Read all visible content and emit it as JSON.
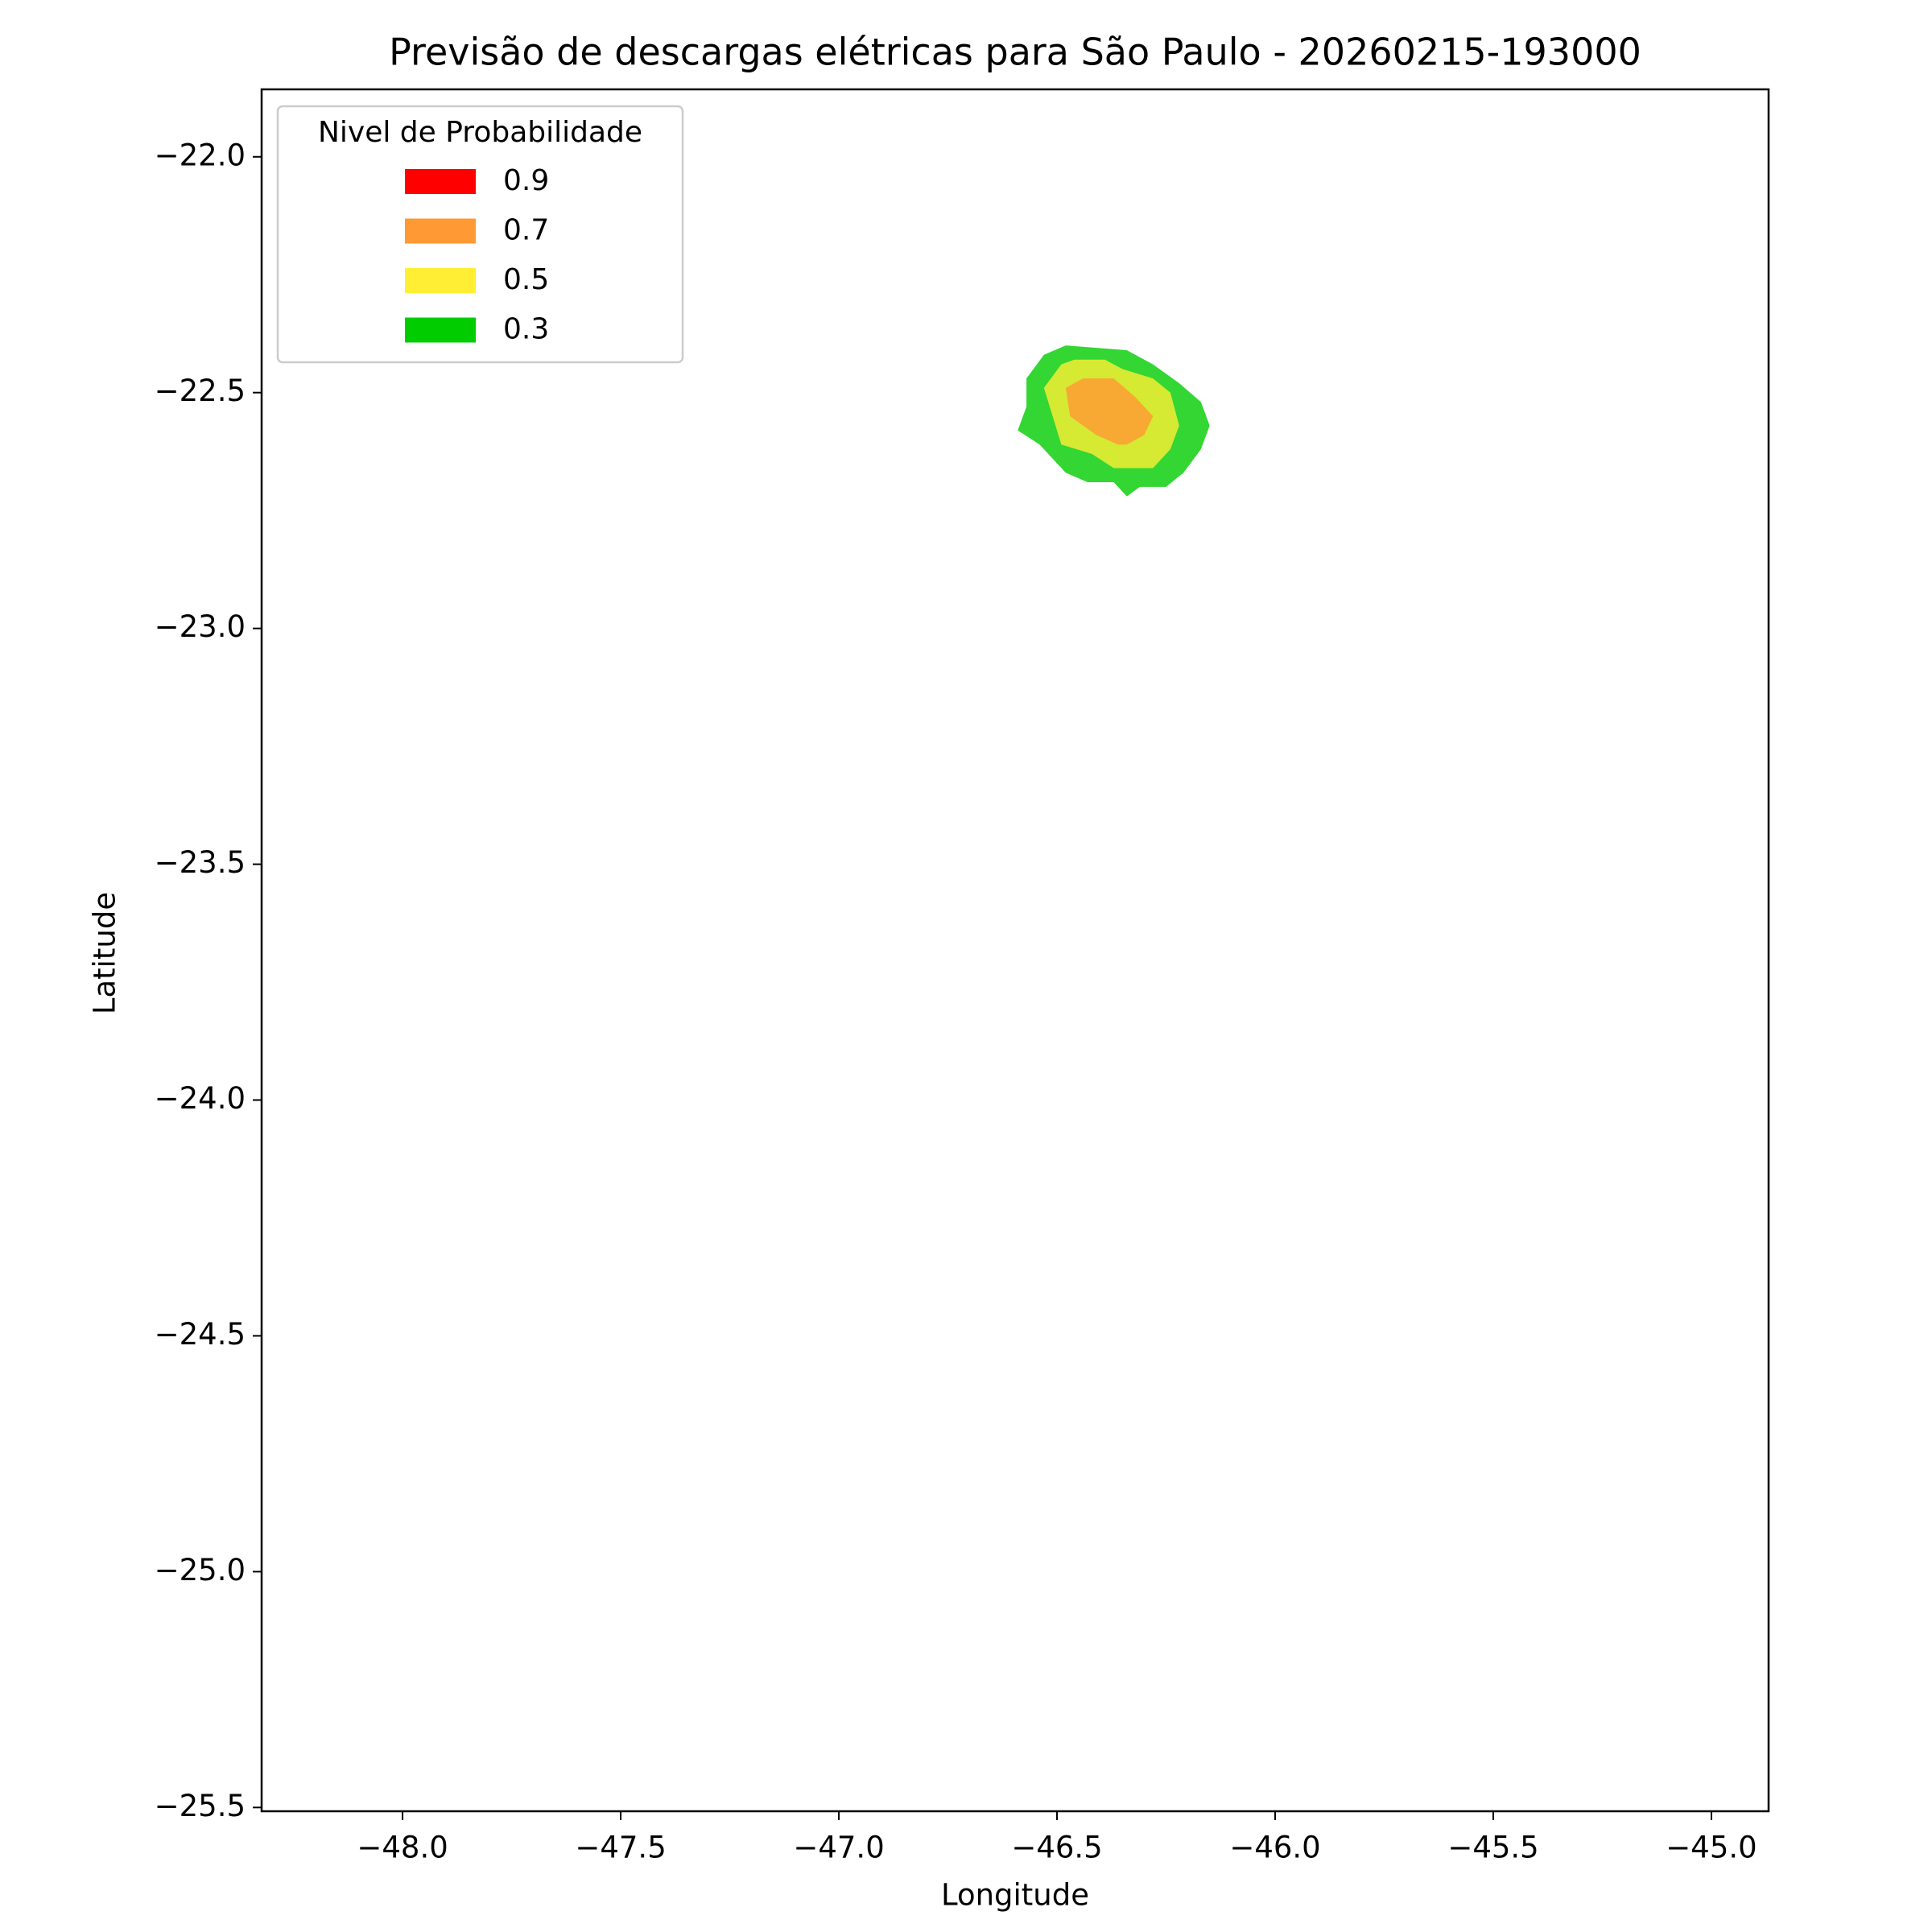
{
  "chart_data": {
    "type": "contour",
    "title": "Previsão de descargas elétricas para São Paulo - 20260215-193000",
    "x_label": "Longitude",
    "y_label": "Latitude",
    "legend_title": "Nivel de Probabilidade",
    "legend_position": "upper left",
    "xlim": [
      -48.323,
      -44.869
    ],
    "ylim": [
      -25.508,
      -21.857
    ],
    "xticks": [
      {
        "value": -48.0,
        "label": "−48.0"
      },
      {
        "value": -47.5,
        "label": "−47.5"
      },
      {
        "value": -47.0,
        "label": "−47.0"
      },
      {
        "value": -46.5,
        "label": "−46.5"
      },
      {
        "value": -46.0,
        "label": "−46.0"
      },
      {
        "value": -45.5,
        "label": "−45.5"
      },
      {
        "value": -45.0,
        "label": "−45.0"
      }
    ],
    "yticks": [
      {
        "value": -22.0,
        "label": "−22.0"
      },
      {
        "value": -22.5,
        "label": "−22.5"
      },
      {
        "value": -23.0,
        "label": "−23.0"
      },
      {
        "value": -23.5,
        "label": "−23.5"
      },
      {
        "value": -24.0,
        "label": "−24.0"
      },
      {
        "value": -24.5,
        "label": "−24.5"
      },
      {
        "value": -25.0,
        "label": "−25.0"
      },
      {
        "value": -25.5,
        "label": "−25.5"
      }
    ],
    "series": [
      {
        "name": "0.9",
        "color": "#ff0000",
        "lon": [],
        "lat": []
      },
      {
        "name": "0.7",
        "color": "#ff9933",
        "lon": [
          -46.48,
          -46.44,
          -46.37,
          -46.32,
          -46.28,
          -46.3,
          -46.34,
          -46.36,
          -46.41,
          -46.47
        ],
        "lat": [
          -22.49,
          -22.47,
          -22.47,
          -22.51,
          -22.55,
          -22.59,
          -22.61,
          -22.61,
          -22.59,
          -22.55
        ]
      },
      {
        "name": "0.5",
        "color": "#ffee33",
        "lon": [
          -46.53,
          -46.49,
          -46.46,
          -46.39,
          -46.35,
          -46.28,
          -46.24,
          -46.22,
          -46.24,
          -46.28,
          -46.37,
          -46.42,
          -46.49,
          -46.51
        ],
        "lat": [
          -22.49,
          -22.44,
          -22.43,
          -22.43,
          -22.45,
          -22.47,
          -22.5,
          -22.57,
          -22.62,
          -22.66,
          -22.66,
          -22.63,
          -22.61,
          -22.55
        ]
      },
      {
        "name": "0.3",
        "color": "#00cc00",
        "lon": [
          -46.57,
          -46.53,
          -46.48,
          -46.34,
          -46.28,
          -46.22,
          -46.17,
          -46.15,
          -46.17,
          -46.21,
          -46.25,
          -46.31,
          -46.34,
          -46.37,
          -46.43,
          -46.48,
          -46.54,
          -46.59,
          -46.57
        ],
        "lat": [
          -22.47,
          -22.42,
          -22.4,
          -22.41,
          -22.44,
          -22.48,
          -22.52,
          -22.57,
          -22.62,
          -22.67,
          -22.7,
          -22.7,
          -22.72,
          -22.69,
          -22.69,
          -22.67,
          -22.61,
          -22.58,
          -22.53
        ]
      }
    ]
  }
}
